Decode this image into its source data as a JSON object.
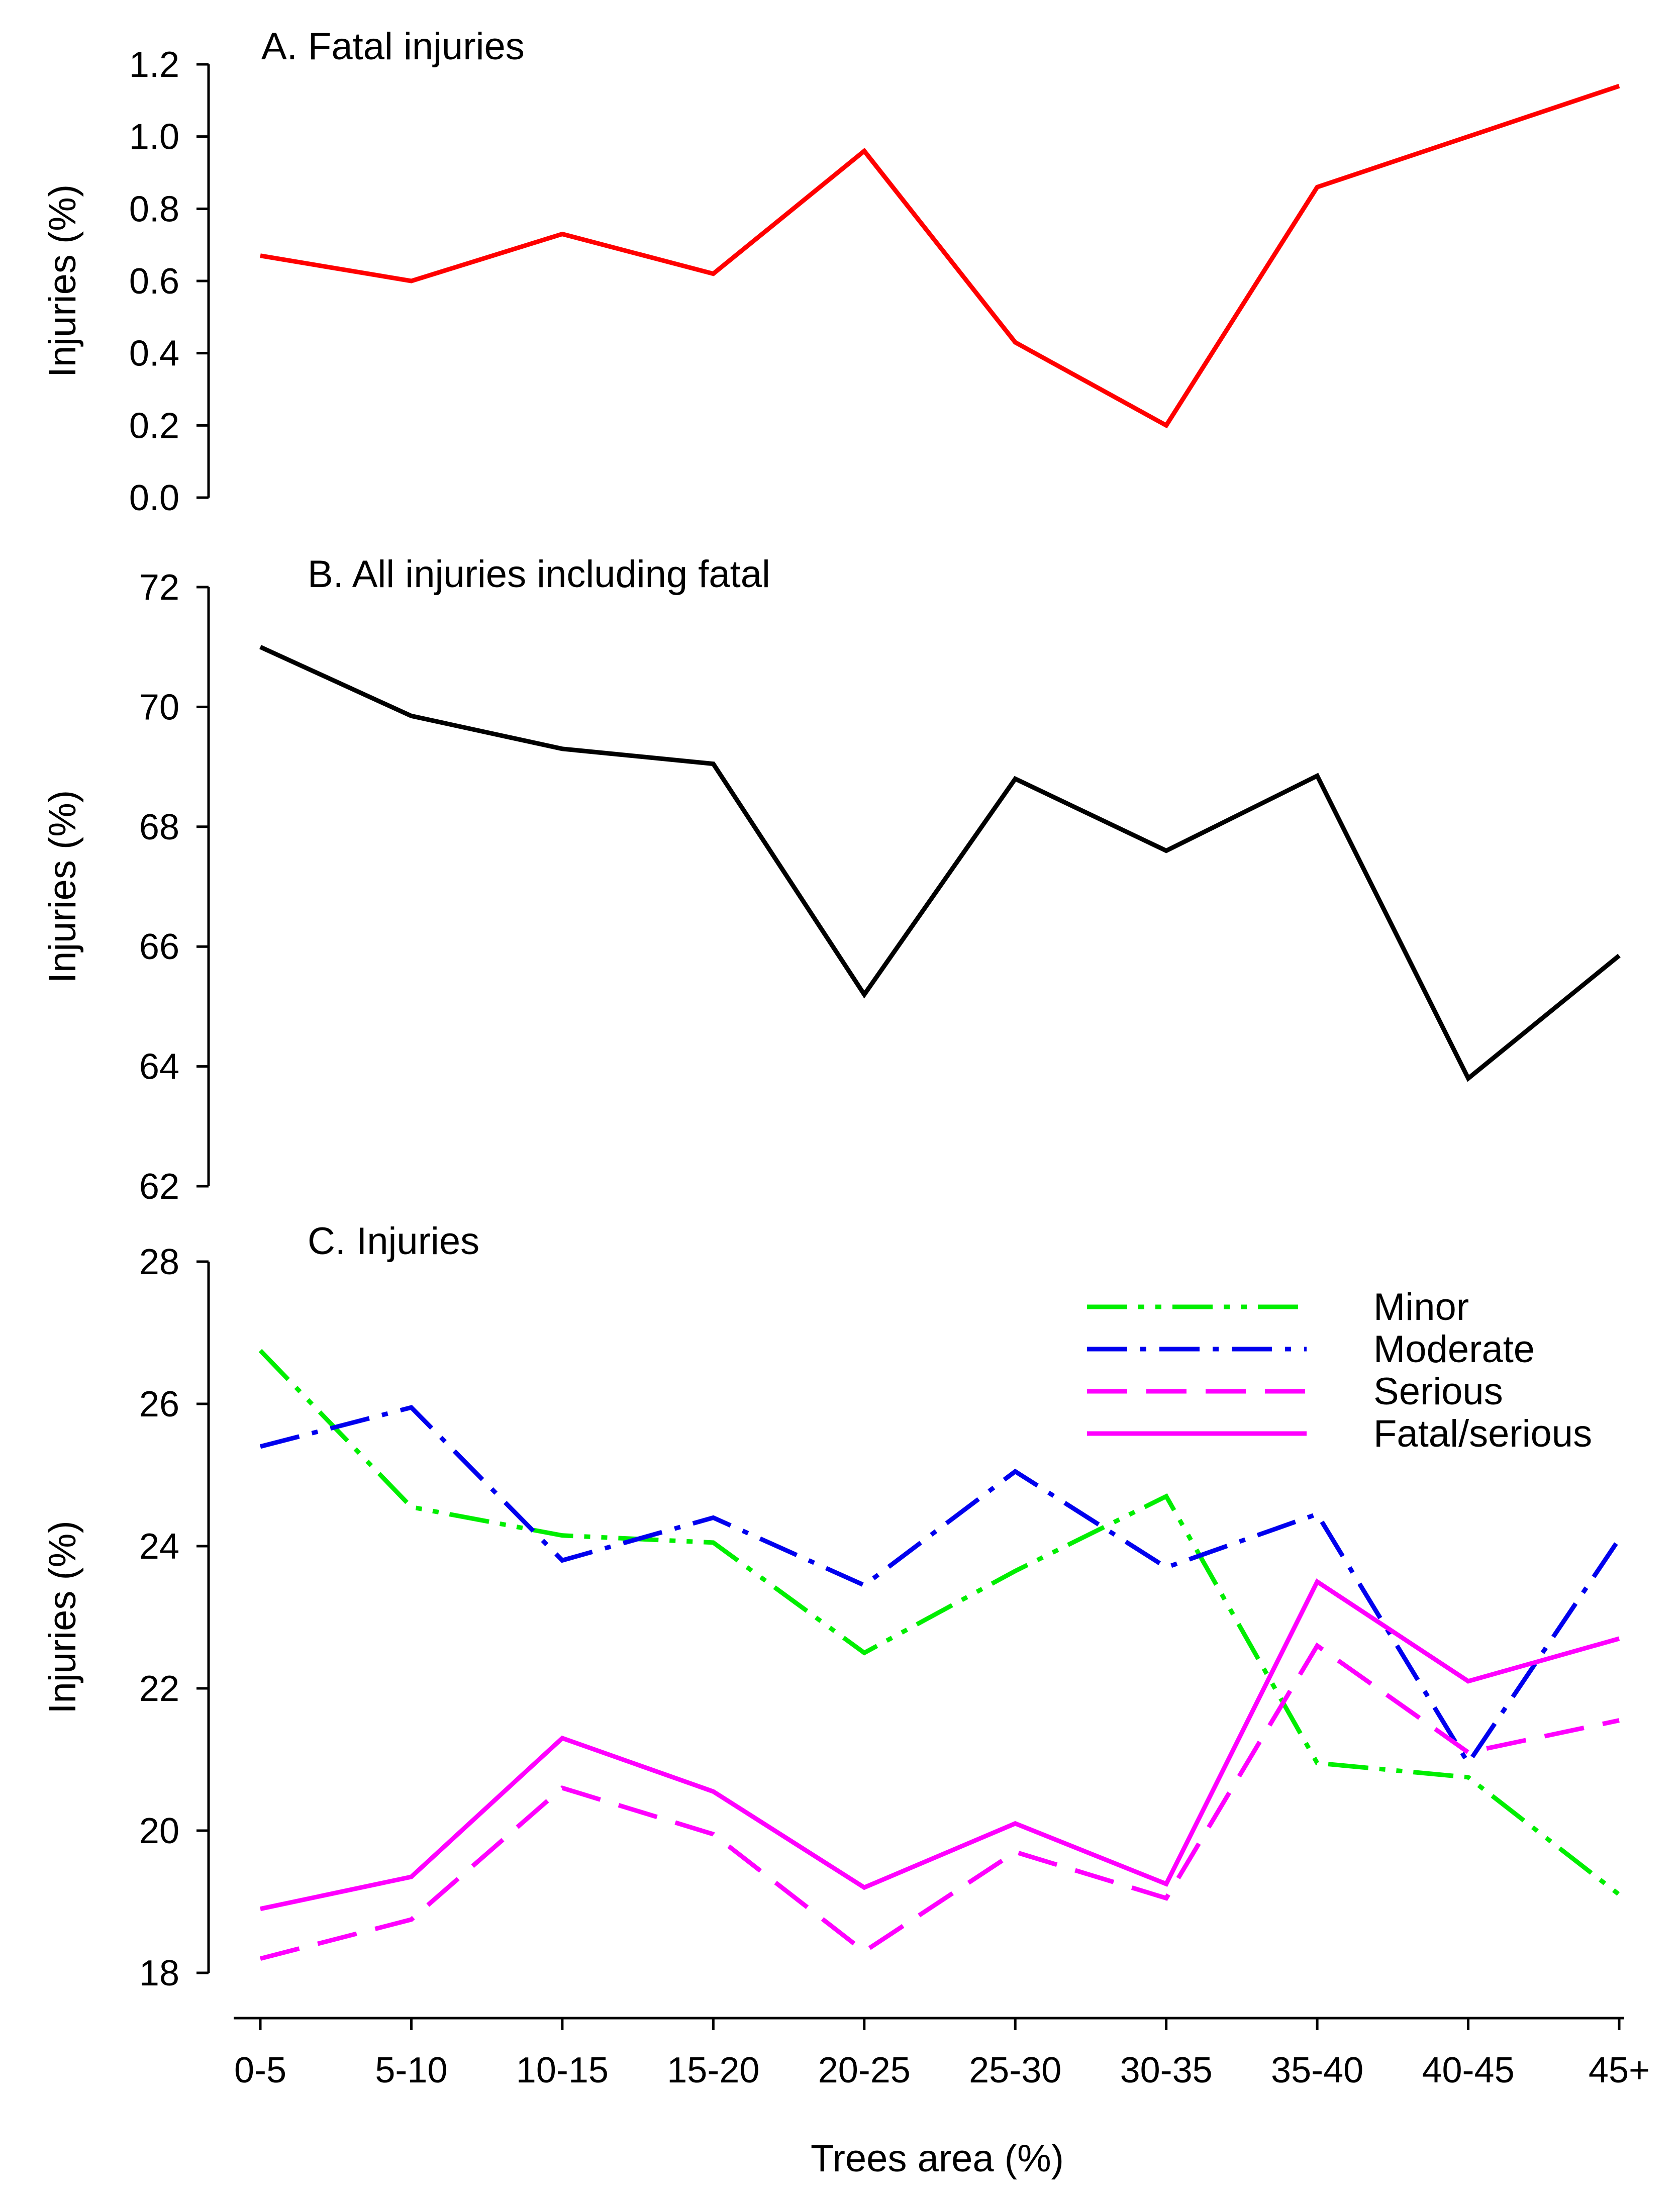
{
  "chart_data": [
    {
      "type": "line",
      "title": "A. Fatal injuries",
      "xlabel": "",
      "ylabel": "Injuries (%)",
      "categories": [
        "0-5",
        "5-10",
        "10-15",
        "15-20",
        "20-25",
        "25-30",
        "30-35",
        "35-40",
        "40-45",
        "45+"
      ],
      "ylim": [
        0.0,
        1.2
      ],
      "yticks": [
        "0.0",
        "0.2",
        "0.4",
        "0.6",
        "0.8",
        "1.0",
        "1.2"
      ],
      "grid": false,
      "series": [
        {
          "name": "Fatal",
          "color": "#ff0000",
          "dash": "solid",
          "values": [
            0.67,
            0.6,
            0.73,
            0.62,
            0.96,
            0.43,
            0.2,
            0.86,
            1.0,
            1.14
          ]
        }
      ]
    },
    {
      "type": "line",
      "title": "B. All injuries including fatal",
      "xlabel": "",
      "ylabel": "Injuries (%)",
      "categories": [
        "0-5",
        "5-10",
        "10-15",
        "15-20",
        "20-25",
        "25-30",
        "30-35",
        "35-40",
        "40-45",
        "45+"
      ],
      "ylim": [
        62,
        72
      ],
      "yticks": [
        "62",
        "64",
        "66",
        "68",
        "70",
        "72"
      ],
      "grid": false,
      "series": [
        {
          "name": "All injuries",
          "color": "#000000",
          "dash": "solid",
          "values": [
            71.0,
            69.85,
            69.3,
            69.05,
            65.2,
            68.8,
            67.6,
            68.85,
            63.8,
            65.85
          ]
        }
      ]
    },
    {
      "type": "line",
      "title": "C. Injuries",
      "xlabel": "Trees area (%)",
      "ylabel": "Injuries (%)",
      "categories": [
        "0-5",
        "5-10",
        "10-15",
        "15-20",
        "20-25",
        "25-30",
        "30-35",
        "35-40",
        "40-45",
        "45+"
      ],
      "xticks": [
        "0-5",
        "5-10",
        "10-15",
        "15-20",
        "20-25",
        "25-30",
        "30-35",
        "35-40",
        "40-45",
        "45+"
      ],
      "ylim": [
        18,
        28
      ],
      "yticks": [
        "18",
        "20",
        "22",
        "24",
        "26",
        "28"
      ],
      "grid": false,
      "legend": "top-right",
      "series": [
        {
          "name": "Minor",
          "color": "#00ee00",
          "dash": "dash-dot-dot",
          "values": [
            26.75,
            24.55,
            24.15,
            24.05,
            22.5,
            23.65,
            24.7,
            20.95,
            20.75,
            19.1
          ]
        },
        {
          "name": "Moderate",
          "color": "#0000ee",
          "dash": "dash-dot",
          "values": [
            25.4,
            25.95,
            23.8,
            24.4,
            23.45,
            25.05,
            23.7,
            24.45,
            20.95,
            24.1
          ]
        },
        {
          "name": "Serious",
          "color": "#ff00ff",
          "dash": "dashed",
          "values": [
            18.2,
            18.75,
            20.6,
            19.95,
            18.3,
            19.7,
            19.05,
            22.6,
            21.1,
            21.55
          ]
        },
        {
          "name": "Fatal/serious",
          "color": "#ff00ff",
          "dash": "solid",
          "values": [
            18.9,
            19.35,
            21.3,
            20.55,
            19.2,
            20.1,
            19.25,
            23.5,
            22.1,
            22.7
          ]
        }
      ]
    }
  ]
}
